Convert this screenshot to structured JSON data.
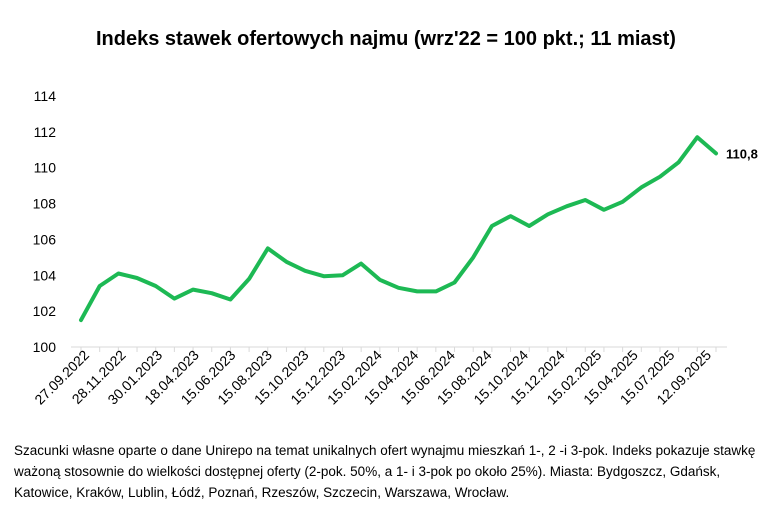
{
  "chart_data": {
    "type": "line",
    "title": "Indeks stawek ofertowych najmu (wrz'22 = 100 pkt.; 11 miast)",
    "xlabel": "",
    "ylabel": "",
    "ylim": [
      100,
      114
    ],
    "yticks": [
      "100",
      "102",
      "104",
      "106",
      "108",
      "110",
      "112",
      "114"
    ],
    "x_tick_labels": [
      "27.09.2022",
      "28.11.2022",
      "30.01.2023",
      "18.04.2023",
      "15.06.2023",
      "15.08.2023",
      "15.10.2023",
      "15.12.2023",
      "15.02.2024",
      "15.04.2024",
      "15.06.2024",
      "15.08.2024",
      "15.10.2024",
      "15.12.2024",
      "15.02.2025",
      "15.04.2025",
      "15.07.2025",
      "12.09.2025"
    ],
    "grid": false,
    "legend": "none",
    "series": [
      {
        "color": "#1db954",
        "values": [
          101.5,
          103.4,
          104.1,
          103.85,
          103.4,
          102.7,
          103.2,
          103.0,
          102.65,
          103.8,
          105.5,
          104.75,
          104.25,
          103.95,
          104.0,
          104.65,
          103.75,
          103.3,
          103.1,
          103.1,
          103.6,
          105.0,
          106.75,
          107.3,
          106.75,
          107.4,
          107.85,
          108.2,
          107.65,
          108.1,
          108.9,
          109.5,
          110.3,
          111.7,
          110.8
        ]
      }
    ],
    "end_label": "110,8",
    "axis_color": "#d9d9d9"
  },
  "footnote": "Szacunki własne oparte o dane Unirepo na temat unikalnych ofert wynajmu mieszkań 1-, 2 -i 3-pok. Indeks pokazuje stawkę ważoną stosownie do wielkości dostępnej oferty (2-pok. 50%, a 1- i 3-pok po około 25%). Miasta: Bydgoszcz, Gdańsk, Katowice, Kraków, Lublin, Łódź, Poznań, Rzeszów, Szczecin, Warszawa, Wrocław."
}
